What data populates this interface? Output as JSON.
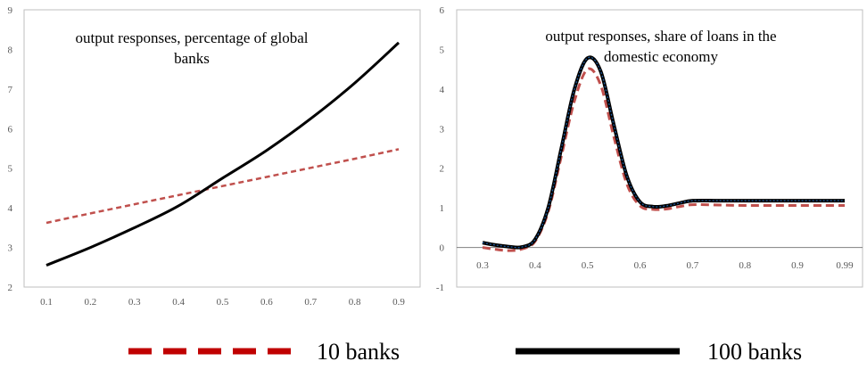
{
  "chart_data": [
    {
      "type": "line",
      "title": [
        "output responses, percentage of global",
        "banks"
      ],
      "xlabel": "",
      "ylabel": "",
      "x": [
        0.1,
        0.2,
        0.3,
        0.4,
        0.5,
        0.6,
        0.7,
        0.8,
        0.9
      ],
      "x_tick_labels": [
        "0.1",
        "0.2",
        "0.3",
        "0.4",
        "0.5",
        "0.6",
        "0.7",
        "0.8",
        "0.9"
      ],
      "ylim": [
        2,
        9
      ],
      "y_ticks": [
        2,
        3,
        4,
        5,
        6,
        7,
        8,
        9
      ],
      "series": [
        {
          "name": "10 banks",
          "values": [
            3.62,
            3.86,
            4.09,
            4.32,
            4.55,
            4.78,
            5.01,
            5.24,
            5.48
          ]
        },
        {
          "name": "100 banks",
          "values": [
            2.55,
            3.0,
            3.5,
            4.05,
            4.75,
            5.45,
            6.25,
            7.15,
            8.17
          ]
        }
      ],
      "grid": false
    },
    {
      "type": "line",
      "title": [
        "output responses, share of loans in the",
        "domestic economy"
      ],
      "xlabel": "",
      "ylabel": "",
      "x": [
        0.3,
        0.325,
        0.35,
        0.375,
        0.4,
        0.425,
        0.45,
        0.475,
        0.5,
        0.525,
        0.55,
        0.575,
        0.6,
        0.625,
        0.65,
        0.675,
        0.7,
        0.75,
        0.8,
        0.85,
        0.9,
        0.95,
        0.99
      ],
      "x_tick_labels": [
        "0.3",
        "0.4",
        "0.5",
        "0.6",
        "0.7",
        "0.8",
        "0.9",
        "0.99"
      ],
      "ylim": [
        -1,
        6
      ],
      "y_ticks": [
        -1,
        0,
        1,
        2,
        3,
        4,
        5,
        6
      ],
      "series": [
        {
          "name": "10 banks",
          "values": [
            0.0,
            -0.05,
            -0.08,
            -0.04,
            0.15,
            0.9,
            2.3,
            3.7,
            4.5,
            4.1,
            2.8,
            1.6,
            1.05,
            0.96,
            0.97,
            1.03,
            1.08,
            1.07,
            1.06,
            1.06,
            1.06,
            1.06,
            1.06
          ]
        },
        {
          "name": "100 banks",
          "values": [
            0.12,
            0.06,
            0.02,
            0.01,
            0.2,
            1.0,
            2.5,
            4.0,
            4.78,
            4.45,
            3.1,
            1.8,
            1.15,
            1.03,
            1.05,
            1.12,
            1.18,
            1.18,
            1.18,
            1.18,
            1.18,
            1.18,
            1.18
          ]
        }
      ],
      "grid": false
    }
  ],
  "legend": {
    "items": [
      {
        "label": "10 banks",
        "color": "#c00000",
        "style": "dashed"
      },
      {
        "label": "100 banks",
        "color": "#000000",
        "style": "solid"
      }
    ],
    "placement": "bottom"
  },
  "colors": {
    "series_10_panel1": "#c0504d",
    "series_100": "#000000",
    "series_10_panel2": "#c0504d",
    "series_100_panel2_inner": "#1f5fa8",
    "axis": "#7f7f7f",
    "tick": "#595959"
  }
}
